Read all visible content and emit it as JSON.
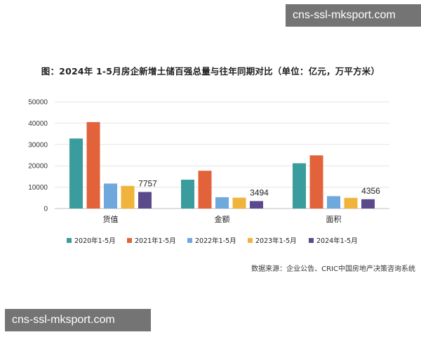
{
  "watermark_top": "cns-ssl-mksport.com",
  "watermark_bottom": "cns-ssl-mksport.com",
  "source_note": "数据来源：企业公告、CRIC中国房地产决策咨询系统",
  "chart_data": {
    "type": "bar",
    "title": "图：2024年 1-5月房企新增土储百强总量与往年同期对比（单位：亿元，万平方米）",
    "xlabel": "",
    "ylabel": "",
    "ylim": [
      0,
      50000
    ],
    "yticks": [
      "50000",
      "40000",
      "30000",
      "20000",
      "10000",
      "0"
    ],
    "categories": [
      "货值",
      "金额",
      "面积"
    ],
    "series": [
      {
        "name": "2020年1-5月",
        "color": "#3a9c9c",
        "values": [
          32800,
          13500,
          21200
        ]
      },
      {
        "name": "2021年1-5月",
        "color": "#e2623b",
        "values": [
          40500,
          17700,
          24900
        ]
      },
      {
        "name": "2022年1-5月",
        "color": "#6fa8dc",
        "values": [
          11700,
          5300,
          5800
        ]
      },
      {
        "name": "2023年1-5月",
        "color": "#f0b43c",
        "values": [
          10600,
          5100,
          5000
        ]
      },
      {
        "name": "2024年1-5月",
        "color": "#5a4a8c",
        "values": [
          7757,
          3494,
          4356
        ]
      }
    ],
    "data_labels": [
      "7757",
      "3494",
      "4356"
    ],
    "grid": true,
    "legend_position": "bottom"
  }
}
